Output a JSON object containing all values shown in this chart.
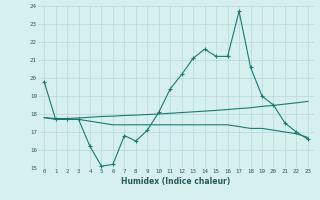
{
  "xlabel": "Humidex (Indice chaleur)",
  "ylabel": "",
  "bg_color": "#d6efef",
  "grid_color": "#b8d8d8",
  "line_color": "#1a7a6e",
  "xlim": [
    -0.5,
    23.5
  ],
  "ylim": [
    15,
    24
  ],
  "xticks": [
    0,
    1,
    2,
    3,
    4,
    5,
    6,
    7,
    8,
    9,
    10,
    11,
    12,
    13,
    14,
    15,
    16,
    17,
    18,
    19,
    20,
    21,
    22,
    23
  ],
  "yticks": [
    15,
    16,
    17,
    18,
    19,
    20,
    21,
    22,
    23,
    24
  ],
  "line1_x": [
    0,
    1,
    2,
    3,
    4,
    5,
    6,
    7,
    8,
    9,
    10,
    11,
    12,
    13,
    14,
    15,
    16,
    17,
    18,
    19,
    20,
    21,
    22,
    23
  ],
  "line1_y": [
    19.8,
    17.7,
    17.7,
    17.7,
    16.2,
    15.1,
    15.2,
    16.8,
    16.5,
    17.1,
    18.1,
    19.4,
    20.2,
    21.1,
    21.6,
    21.2,
    21.2,
    23.7,
    20.6,
    19.0,
    18.5,
    17.5,
    17.0,
    16.6
  ],
  "line2_x": [
    0,
    1,
    2,
    3,
    4,
    5,
    6,
    7,
    8,
    9,
    10,
    11,
    12,
    13,
    14,
    15,
    16,
    17,
    18,
    19,
    20,
    21,
    22,
    23
  ],
  "line2_y": [
    17.8,
    17.75,
    17.75,
    17.78,
    17.82,
    17.86,
    17.88,
    17.92,
    17.94,
    17.97,
    18.0,
    18.04,
    18.08,
    18.12,
    18.16,
    18.2,
    18.25,
    18.3,
    18.35,
    18.42,
    18.48,
    18.55,
    18.62,
    18.7
  ],
  "line3_x": [
    0,
    1,
    2,
    3,
    4,
    5,
    6,
    7,
    8,
    9,
    10,
    11,
    12,
    13,
    14,
    15,
    16,
    17,
    18,
    19,
    20,
    21,
    22,
    23
  ],
  "line3_y": [
    17.8,
    17.7,
    17.7,
    17.7,
    17.6,
    17.5,
    17.4,
    17.4,
    17.4,
    17.4,
    17.4,
    17.4,
    17.4,
    17.4,
    17.4,
    17.4,
    17.4,
    17.3,
    17.2,
    17.2,
    17.1,
    17.0,
    16.9,
    16.7
  ]
}
